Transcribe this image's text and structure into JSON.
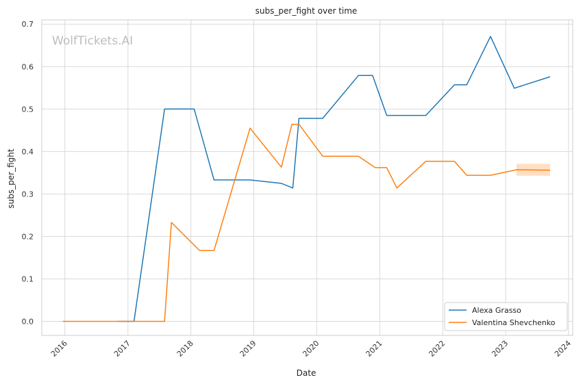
{
  "chart_data": {
    "type": "line",
    "title": "subs_per_fight over time",
    "xlabel": "Date",
    "ylabel": "subs_per_fight",
    "watermark": "WolfTickets.AI",
    "xlim": [
      "2015-08-20",
      "2024-01-25"
    ],
    "ylim": [
      -0.033,
      0.71
    ],
    "x_ticks": [
      "2016",
      "2017",
      "2018",
      "2019",
      "2020",
      "2021",
      "2022",
      "2023",
      "2024"
    ],
    "y_ticks": [
      "0.0",
      "0.1",
      "0.2",
      "0.3",
      "0.4",
      "0.5",
      "0.6",
      "0.7"
    ],
    "grid": true,
    "legend_position": "lower-right",
    "series": [
      {
        "name": "Alexa Grasso",
        "color": "#1f77b4",
        "points": [
          [
            "2016-11-05",
            0.0
          ],
          [
            "2017-02-05",
            0.0
          ],
          [
            "2017-08-01",
            0.5
          ],
          [
            "2018-01-20",
            0.5
          ],
          [
            "2018-05-15",
            0.333
          ],
          [
            "2018-12-10",
            0.333
          ],
          [
            "2019-06-10",
            0.325
          ],
          [
            "2019-08-15",
            0.314
          ],
          [
            "2019-09-20",
            0.478
          ],
          [
            "2020-02-05",
            0.478
          ],
          [
            "2020-08-30",
            0.579
          ],
          [
            "2020-11-20",
            0.579
          ],
          [
            "2021-02-10",
            0.485
          ],
          [
            "2021-09-25",
            0.485
          ],
          [
            "2022-03-10",
            0.557
          ],
          [
            "2022-05-20",
            0.557
          ],
          [
            "2022-10-05",
            0.671
          ],
          [
            "2023-02-20",
            0.549
          ],
          [
            "2023-09-16",
            0.576
          ]
        ]
      },
      {
        "name": "Valentina Shevchenko",
        "color": "#ff7f0e",
        "points": [
          [
            "2015-12-20",
            0.0
          ],
          [
            "2017-08-01",
            0.0
          ],
          [
            "2017-09-10",
            0.233
          ],
          [
            "2018-02-20",
            0.167
          ],
          [
            "2018-05-15",
            0.167
          ],
          [
            "2018-12-10",
            0.455
          ],
          [
            "2019-06-10",
            0.363
          ],
          [
            "2019-08-10",
            0.464
          ],
          [
            "2019-09-20",
            0.464
          ],
          [
            "2020-02-05",
            0.389
          ],
          [
            "2020-08-30",
            0.389
          ],
          [
            "2020-12-05",
            0.362
          ],
          [
            "2021-02-10",
            0.362
          ],
          [
            "2021-04-10",
            0.314
          ],
          [
            "2021-09-25",
            0.377
          ],
          [
            "2022-03-10",
            0.377
          ],
          [
            "2022-05-20",
            0.344
          ],
          [
            "2022-10-05",
            0.344
          ],
          [
            "2023-03-05",
            0.357
          ],
          [
            "2023-09-16",
            0.356
          ]
        ],
        "band": {
          "from": "2023-03-05",
          "to": "2023-09-16",
          "low": 0.343,
          "high": 0.371
        }
      }
    ]
  }
}
